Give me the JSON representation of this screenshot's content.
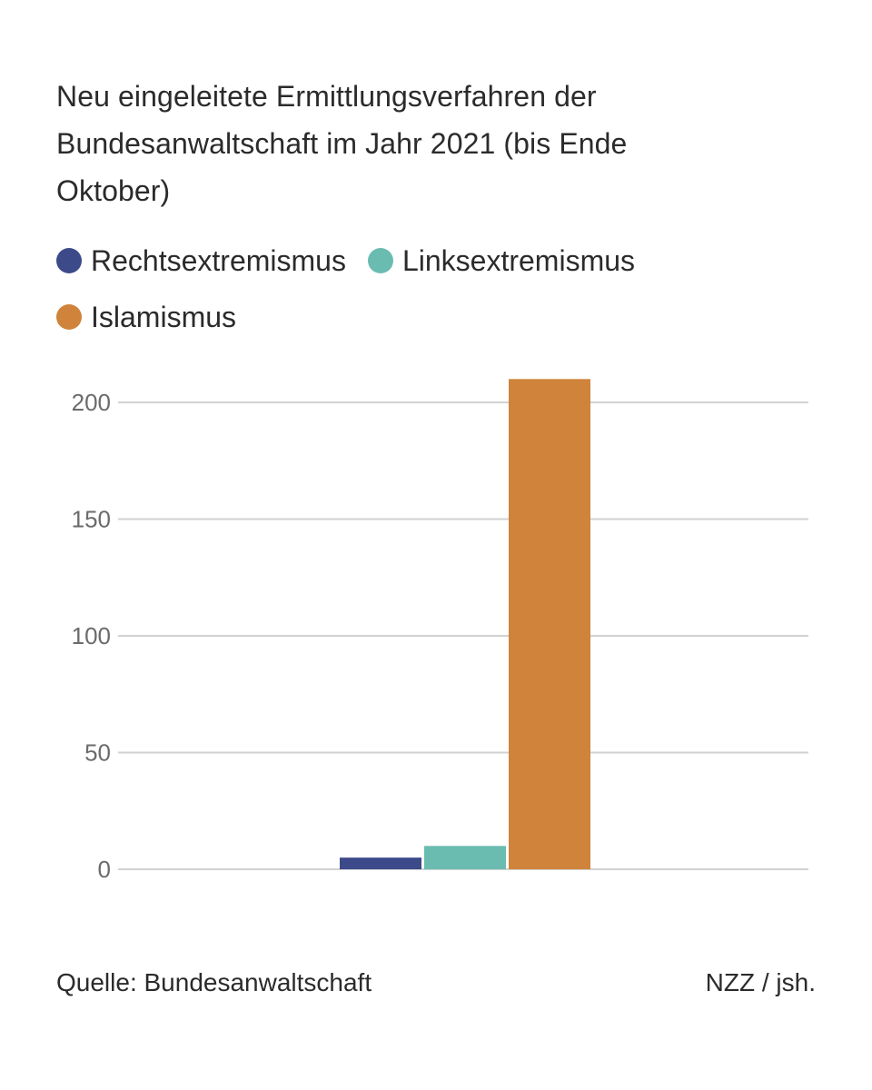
{
  "chart_data": {
    "type": "bar",
    "title": "Neu eingeleitete Ermittlungsverfahren der Bundesanwaltschaft im Jahr 2021 (bis Ende Oktober)",
    "categories": [
      ""
    ],
    "series": [
      {
        "name": "Rechtsextremismus",
        "values": [
          5
        ],
        "color": "#3d4a8a"
      },
      {
        "name": "Linksextremismus",
        "values": [
          10
        ],
        "color": "#6bbcb0"
      },
      {
        "name": "Islamismus",
        "values": [
          210
        ],
        "color": "#cf833b"
      }
    ],
    "xlabel": "",
    "ylabel": "",
    "ylim": [
      0,
      200
    ],
    "yticks": [
      0,
      50,
      100,
      150,
      200
    ],
    "grid": true,
    "legend_position": "top-left"
  },
  "source": "Quelle: Bundesanwaltschaft",
  "credit": "NZZ / jsh."
}
